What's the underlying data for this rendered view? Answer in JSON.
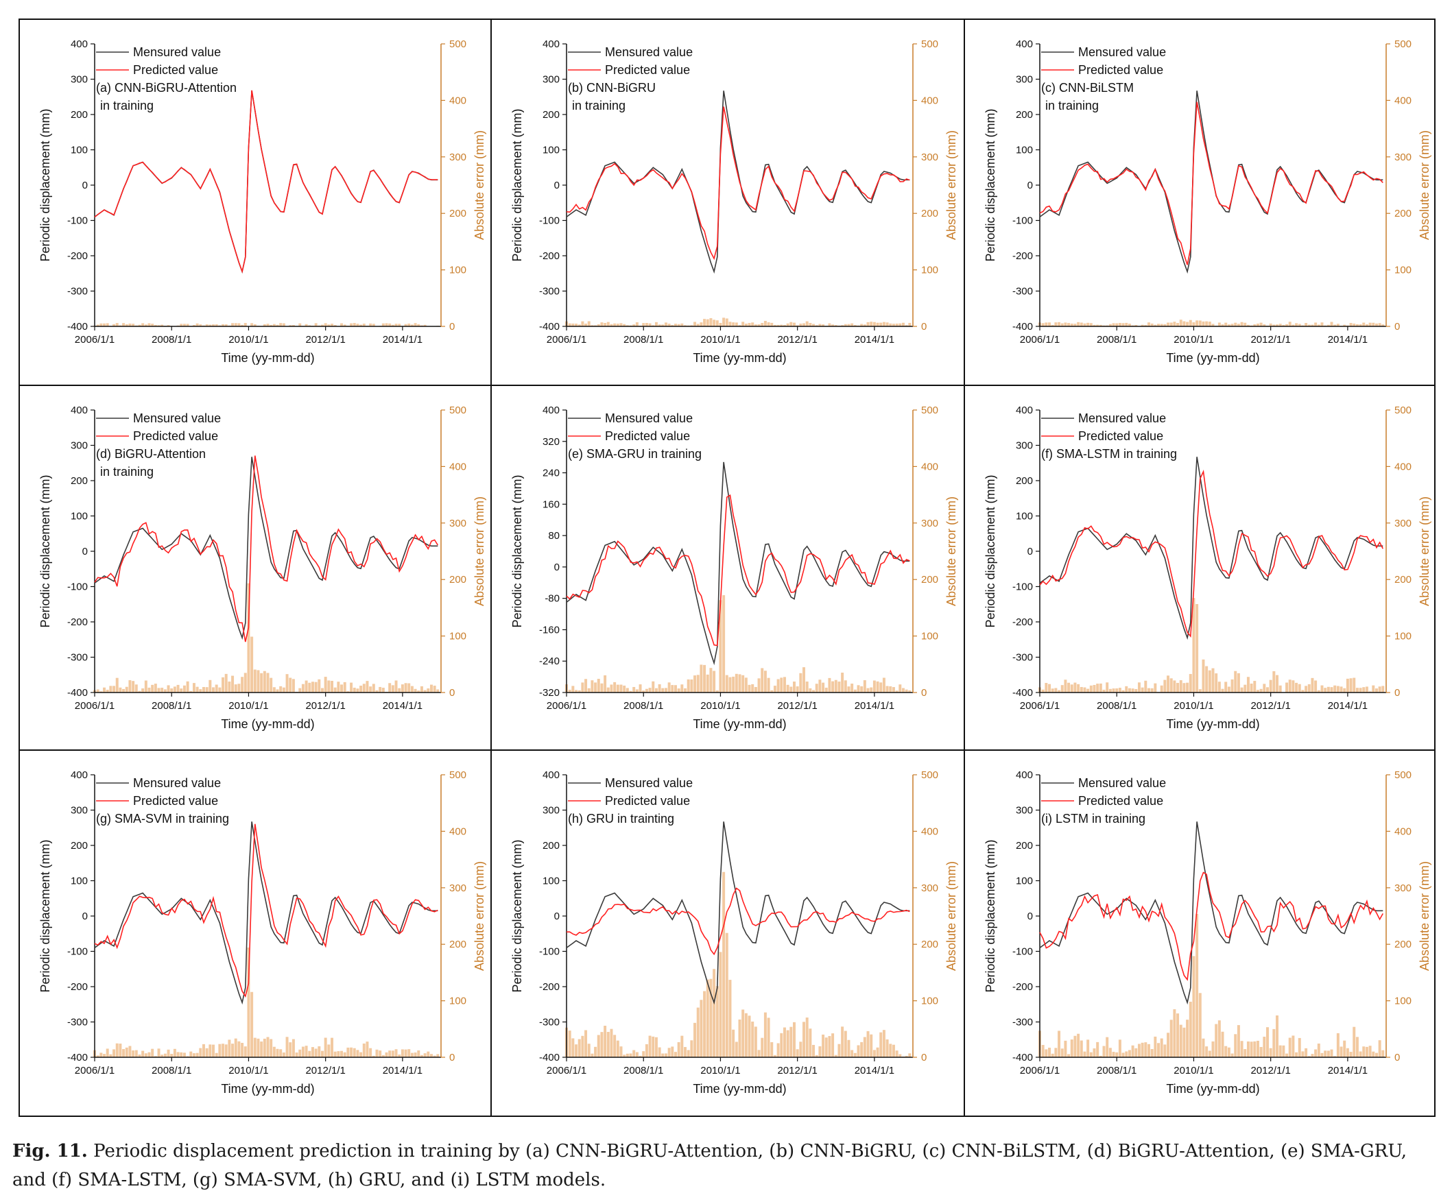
{
  "caption": {
    "label": "Fig. 11.",
    "text": "Periodic displacement prediction in training by (a) CNN-BiGRU-Attention, (b) CNN-BiGRU, (c) CNN-BiLSTM, (d) BiGRU-Attention, (e) SMA-GRU, and (f) SMA-LSTM, (g) SMA-SVM, (h) GRU, and (i) LSTM models."
  },
  "colors": {
    "measured": "#3a3a3a",
    "predicted": "#ff2020",
    "error_bar": "#f2c9a0",
    "error_axis": "#c87d2a"
  },
  "chart_data": [
    {
      "id": "a",
      "type": "line",
      "title": "(a) CNN-BiGRU-Attention",
      "title_line2": "in training",
      "xlabel": "Time (yy-mm-dd)",
      "ylabel": "Periodic displacement (mm)",
      "ylabel_right": "Absolute error (mm)",
      "xticks": [
        "2006/1/1",
        "2008/1/1",
        "2010/1/1",
        "2012/1/1",
        "2014/1/1"
      ],
      "xlim": [
        2006,
        2015
      ],
      "ylim": [
        -400,
        400
      ],
      "yticks": [
        -400,
        -300,
        -200,
        -100,
        0,
        100,
        200,
        300,
        400
      ],
      "ylim_right": [
        0,
        500
      ],
      "yticks_right": [
        0,
        100,
        200,
        300,
        400,
        500
      ],
      "legend": [
        "Mensured value",
        "Predicted value"
      ],
      "error_scale": 0.3,
      "noise": 1,
      "lag": 0,
      "amp": 1,
      "smooth": 0
    },
    {
      "id": "b",
      "type": "line",
      "title": "(b) CNN-BiGRU",
      "title_line2": "in training",
      "xlabel": "Time (yy-mm-dd)",
      "ylabel": "Periodic displacement (mm)",
      "ylabel_right": "Absolute error (mm)",
      "xticks": [
        "2006/1/1",
        "2008/1/1",
        "2010/1/1",
        "2012/1/1",
        "2014/1/1"
      ],
      "xlim": [
        2006,
        2015
      ],
      "ylim": [
        -400,
        400
      ],
      "yticks": [
        -400,
        -300,
        -200,
        -100,
        0,
        100,
        200,
        300,
        400
      ],
      "ylim_right": [
        0,
        500
      ],
      "yticks_right": [
        0,
        100,
        200,
        300,
        400,
        500
      ],
      "legend": [
        "Mensured value",
        "Predicted value"
      ],
      "error_scale": 0.6,
      "noise": 6,
      "lag": 0,
      "amp": 0.85,
      "smooth": 0
    },
    {
      "id": "c",
      "type": "line",
      "title": "(c) CNN-BiLSTM",
      "title_line2": "in training",
      "xlabel": "Time (yy-mm-dd)",
      "ylabel": "Periodic displacement (mm)",
      "ylabel_right": "Absolute error (mm)",
      "xticks": [
        "2006/1/1",
        "2008/1/1",
        "2010/1/1",
        "2012/1/1",
        "2014/1/1"
      ],
      "xlim": [
        2006,
        2015
      ],
      "ylim": [
        -400,
        400
      ],
      "yticks": [
        -400,
        -300,
        -200,
        -100,
        0,
        100,
        200,
        300,
        400
      ],
      "ylim_right": [
        0,
        500
      ],
      "yticks_right": [
        0,
        100,
        200,
        300,
        400,
        500
      ],
      "legend": [
        "Mensured value",
        "Predicted value"
      ],
      "error_scale": 0.6,
      "noise": 8,
      "lag": 0,
      "amp": 0.9,
      "smooth": 0
    },
    {
      "id": "d",
      "type": "line",
      "title": "(d) BiGRU-Attention",
      "title_line2": "in training",
      "xlabel": "Time (yy-mm-dd)",
      "ylabel": "Periodic displacement (mm)",
      "ylabel_right": "Absolute error (mm)",
      "xticks": [
        "2006/1/1",
        "2008/1/1",
        "2010/1/1",
        "2012/1/1",
        "2014/1/1"
      ],
      "xlim": [
        2006,
        2015
      ],
      "ylim": [
        -400,
        400
      ],
      "yticks": [
        -400,
        -300,
        -200,
        -100,
        0,
        100,
        200,
        300,
        400
      ],
      "ylim_right": [
        0,
        500
      ],
      "yticks_right": [
        0,
        100,
        200,
        300,
        400,
        500
      ],
      "legend": [
        "Mensured value",
        "Predicted value"
      ],
      "error_scale": 1.2,
      "noise": 18,
      "lag": 1,
      "amp": 1,
      "smooth": 0
    },
    {
      "id": "e",
      "type": "line",
      "title": "(e) SMA-GRU in training",
      "title_line2": "",
      "xlabel": "Time (yy-mm-dd)",
      "ylabel": "Periodic displacement (mm)",
      "ylabel_right": "Absolute error (mm)",
      "xticks": [
        "2006/1/1",
        "2008/1/1",
        "2010/1/1",
        "2012/1/1",
        "2014/1/1"
      ],
      "xlim": [
        2006,
        2015
      ],
      "ylim": [
        -320,
        400
      ],
      "yticks": [
        -320,
        -240,
        -160,
        -80,
        0,
        80,
        160,
        240,
        320,
        400
      ],
      "ylim_right": [
        0,
        500
      ],
      "yticks_right": [
        0,
        100,
        200,
        300,
        400,
        500
      ],
      "legend": [
        "Mensured value",
        "Predicted value"
      ],
      "error_scale": 1.6,
      "noise": 12,
      "lag": 1,
      "amp": 0.9,
      "smooth": 1
    },
    {
      "id": "f",
      "type": "line",
      "title": "(f) SMA-LSTM in training",
      "title_line2": "",
      "xlabel": "Time (yy-mm-dd)",
      "ylabel": "Periodic displacement (mm)",
      "ylabel_right": "Absolute error (mm)",
      "xticks": [
        "2006/1/1",
        "2008/1/1",
        "2010/1/1",
        "2012/1/1",
        "2014/1/1"
      ],
      "xlim": [
        2006,
        2015
      ],
      "ylim": [
        -400,
        400
      ],
      "yticks": [
        -400,
        -300,
        -200,
        -100,
        0,
        100,
        200,
        300,
        400
      ],
      "ylim_right": [
        0,
        500
      ],
      "yticks_right": [
        0,
        100,
        200,
        300,
        400,
        500
      ],
      "legend": [
        "Mensured value",
        "Predicted value"
      ],
      "error_scale": 1.5,
      "noise": 10,
      "lag": 1,
      "amp": 1.05,
      "smooth": 1
    },
    {
      "id": "g",
      "type": "line",
      "title": "(g) SMA-SVM in training",
      "title_line2": "",
      "xlabel": "Time (yy-mm-dd)",
      "ylabel": "Periodic displacement (mm)",
      "ylabel_right": "Absolute error (mm)",
      "xticks": [
        "2006/1/1",
        "2008/1/1",
        "2010/1/1",
        "2012/1/1",
        "2014/1/1"
      ],
      "xlim": [
        2006,
        2015
      ],
      "ylim": [
        -400,
        400
      ],
      "yticks": [
        -400,
        -300,
        -200,
        -100,
        0,
        100,
        200,
        300,
        400
      ],
      "ylim_right": [
        0,
        500
      ],
      "yticks_right": [
        0,
        100,
        200,
        300,
        400,
        500
      ],
      "legend": [
        "Mensured value",
        "Predicted value"
      ],
      "error_scale": 1.3,
      "noise": 10,
      "lag": 1,
      "amp": 0.95,
      "smooth": 0
    },
    {
      "id": "h",
      "type": "line",
      "title": "(h) GRU in trainting",
      "title_line2": "",
      "xlabel": "Time (yy-mm-dd)",
      "ylabel": "Periodic displacement (mm)",
      "ylabel_right": "Absolute error (mm)",
      "xticks": [
        "2006/1/1",
        "2008/1/1",
        "2010/1/1",
        "2012/1/1",
        "2014/1/1"
      ],
      "xlim": [
        2006,
        2015
      ],
      "ylim": [
        -400,
        400
      ],
      "yticks": [
        -400,
        -300,
        -200,
        -100,
        0,
        100,
        200,
        300,
        400
      ],
      "ylim_right": [
        0,
        500
      ],
      "yticks_right": [
        0,
        100,
        200,
        300,
        400,
        500
      ],
      "legend": [
        "Mensured value",
        "Predicted value"
      ],
      "error_scale": 2.2,
      "noise": 6,
      "lag": 2,
      "amp": 0.6,
      "smooth": 3
    },
    {
      "id": "i",
      "type": "line",
      "title": "(i) LSTM in training",
      "title_line2": "",
      "xlabel": "Time (yy-mm-dd)",
      "ylabel": "Periodic displacement (mm)",
      "ylabel_right": "Absolute error (mm)",
      "xticks": [
        "2006/1/1",
        "2008/1/1",
        "2010/1/1",
        "2012/1/1",
        "2014/1/1"
      ],
      "xlim": [
        2006,
        2015
      ],
      "ylim": [
        -400,
        400
      ],
      "yticks": [
        -400,
        -300,
        -200,
        -100,
        0,
        100,
        200,
        300,
        400
      ],
      "ylim_right": [
        0,
        500
      ],
      "yticks_right": [
        0,
        100,
        200,
        300,
        400,
        500
      ],
      "legend": [
        "Mensured value",
        "Predicted value"
      ],
      "error_scale": 2.0,
      "noise": 25,
      "lag": 1,
      "amp": 0.8,
      "smooth": 2
    }
  ],
  "measured_series": {
    "x": [
      2006.0,
      2006.25,
      2006.5,
      2006.75,
      2007.0,
      2007.25,
      2007.5,
      2007.75,
      2008.0,
      2008.25,
      2008.5,
      2008.75,
      2009.0,
      2009.25,
      2009.5,
      2009.75,
      2009.9,
      2010.05,
      2010.3,
      2010.6,
      2010.9,
      2011.2,
      2011.4,
      2011.7,
      2011.9,
      2012.2,
      2012.4,
      2012.7,
      2012.9,
      2013.2,
      2013.4,
      2013.7,
      2013.9,
      2014.2,
      2014.4,
      2014.7
    ],
    "y": [
      -90,
      -70,
      -85,
      -10,
      55,
      65,
      35,
      5,
      20,
      50,
      30,
      -10,
      45,
      -20,
      -130,
      -220,
      -265,
      290,
      120,
      -40,
      -85,
      75,
      10,
      -50,
      -90,
      60,
      30,
      -30,
      -55,
      50,
      20,
      -30,
      -55,
      40,
      35,
      15
    ]
  }
}
